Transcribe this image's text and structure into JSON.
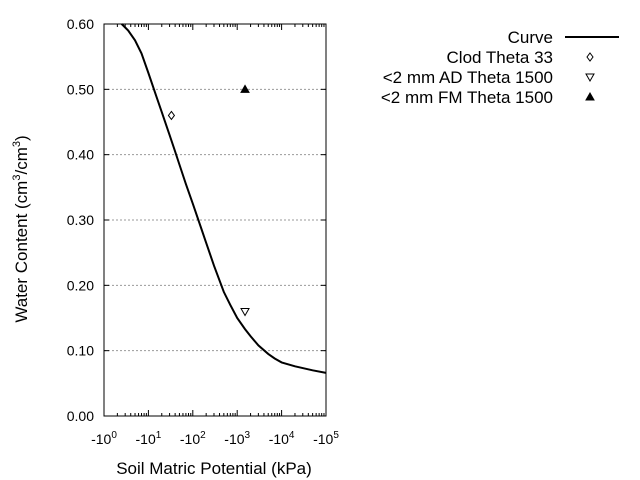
{
  "chart_data": {
    "type": "scatter",
    "title": "",
    "xlabel": "Soil Matric Potential (kPa)",
    "ylabel_main": "Water Content (cm",
    "ylabel_sup1": "3",
    "ylabel_mid": "/cm",
    "ylabel_sup2": "3",
    "ylabel_end": ")",
    "x_scale": "log-negative",
    "x_log_range": [
      0,
      5
    ],
    "y_range": [
      0.0,
      0.6
    ],
    "x_ticks": [
      {
        "base": "-10",
        "exp": "0"
      },
      {
        "base": "-10",
        "exp": "1"
      },
      {
        "base": "-10",
        "exp": "2"
      },
      {
        "base": "-10",
        "exp": "3"
      },
      {
        "base": "-10",
        "exp": "4"
      },
      {
        "base": "-10",
        "exp": "5"
      }
    ],
    "y_ticks": [
      "0.00",
      "0.10",
      "0.20",
      "0.30",
      "0.40",
      "0.50",
      "0.60"
    ],
    "y_grid": true,
    "legend_position": "right",
    "series": [
      {
        "name": "Curve",
        "kind": "line",
        "color": "#000000",
        "points": [
          [
            -2.5,
            0.6
          ],
          [
            -3.5,
            0.59
          ],
          [
            -5,
            0.575
          ],
          [
            -7,
            0.555
          ],
          [
            -10,
            0.525
          ],
          [
            -15,
            0.49
          ],
          [
            -20,
            0.465
          ],
          [
            -30,
            0.43
          ],
          [
            -40,
            0.405
          ],
          [
            -50,
            0.385
          ],
          [
            -70,
            0.355
          ],
          [
            -100,
            0.325
          ],
          [
            -150,
            0.29
          ],
          [
            -200,
            0.265
          ],
          [
            -300,
            0.23
          ],
          [
            -500,
            0.19
          ],
          [
            -700,
            0.17
          ],
          [
            -1000,
            0.15
          ],
          [
            -1500,
            0.133
          ],
          [
            -2000,
            0.122
          ],
          [
            -3000,
            0.108
          ],
          [
            -5000,
            0.095
          ],
          [
            -7000,
            0.088
          ],
          [
            -10000,
            0.082
          ],
          [
            -20000,
            0.076
          ],
          [
            -50000,
            0.07
          ],
          [
            -100000,
            0.066
          ]
        ]
      },
      {
        "name": "Clod Theta 33",
        "kind": "marker",
        "marker": "diamond-open",
        "points": [
          [
            -33,
            0.46
          ]
        ]
      },
      {
        "name": "<2 mm AD Theta 1500",
        "kind": "marker",
        "marker": "triangle-down-open",
        "points": [
          [
            -1500,
            0.16
          ]
        ]
      },
      {
        "name": "<2 mm FM Theta 1500",
        "kind": "marker",
        "marker": "triangle-up-filled",
        "points": [
          [
            -1500,
            0.5
          ]
        ]
      }
    ]
  }
}
